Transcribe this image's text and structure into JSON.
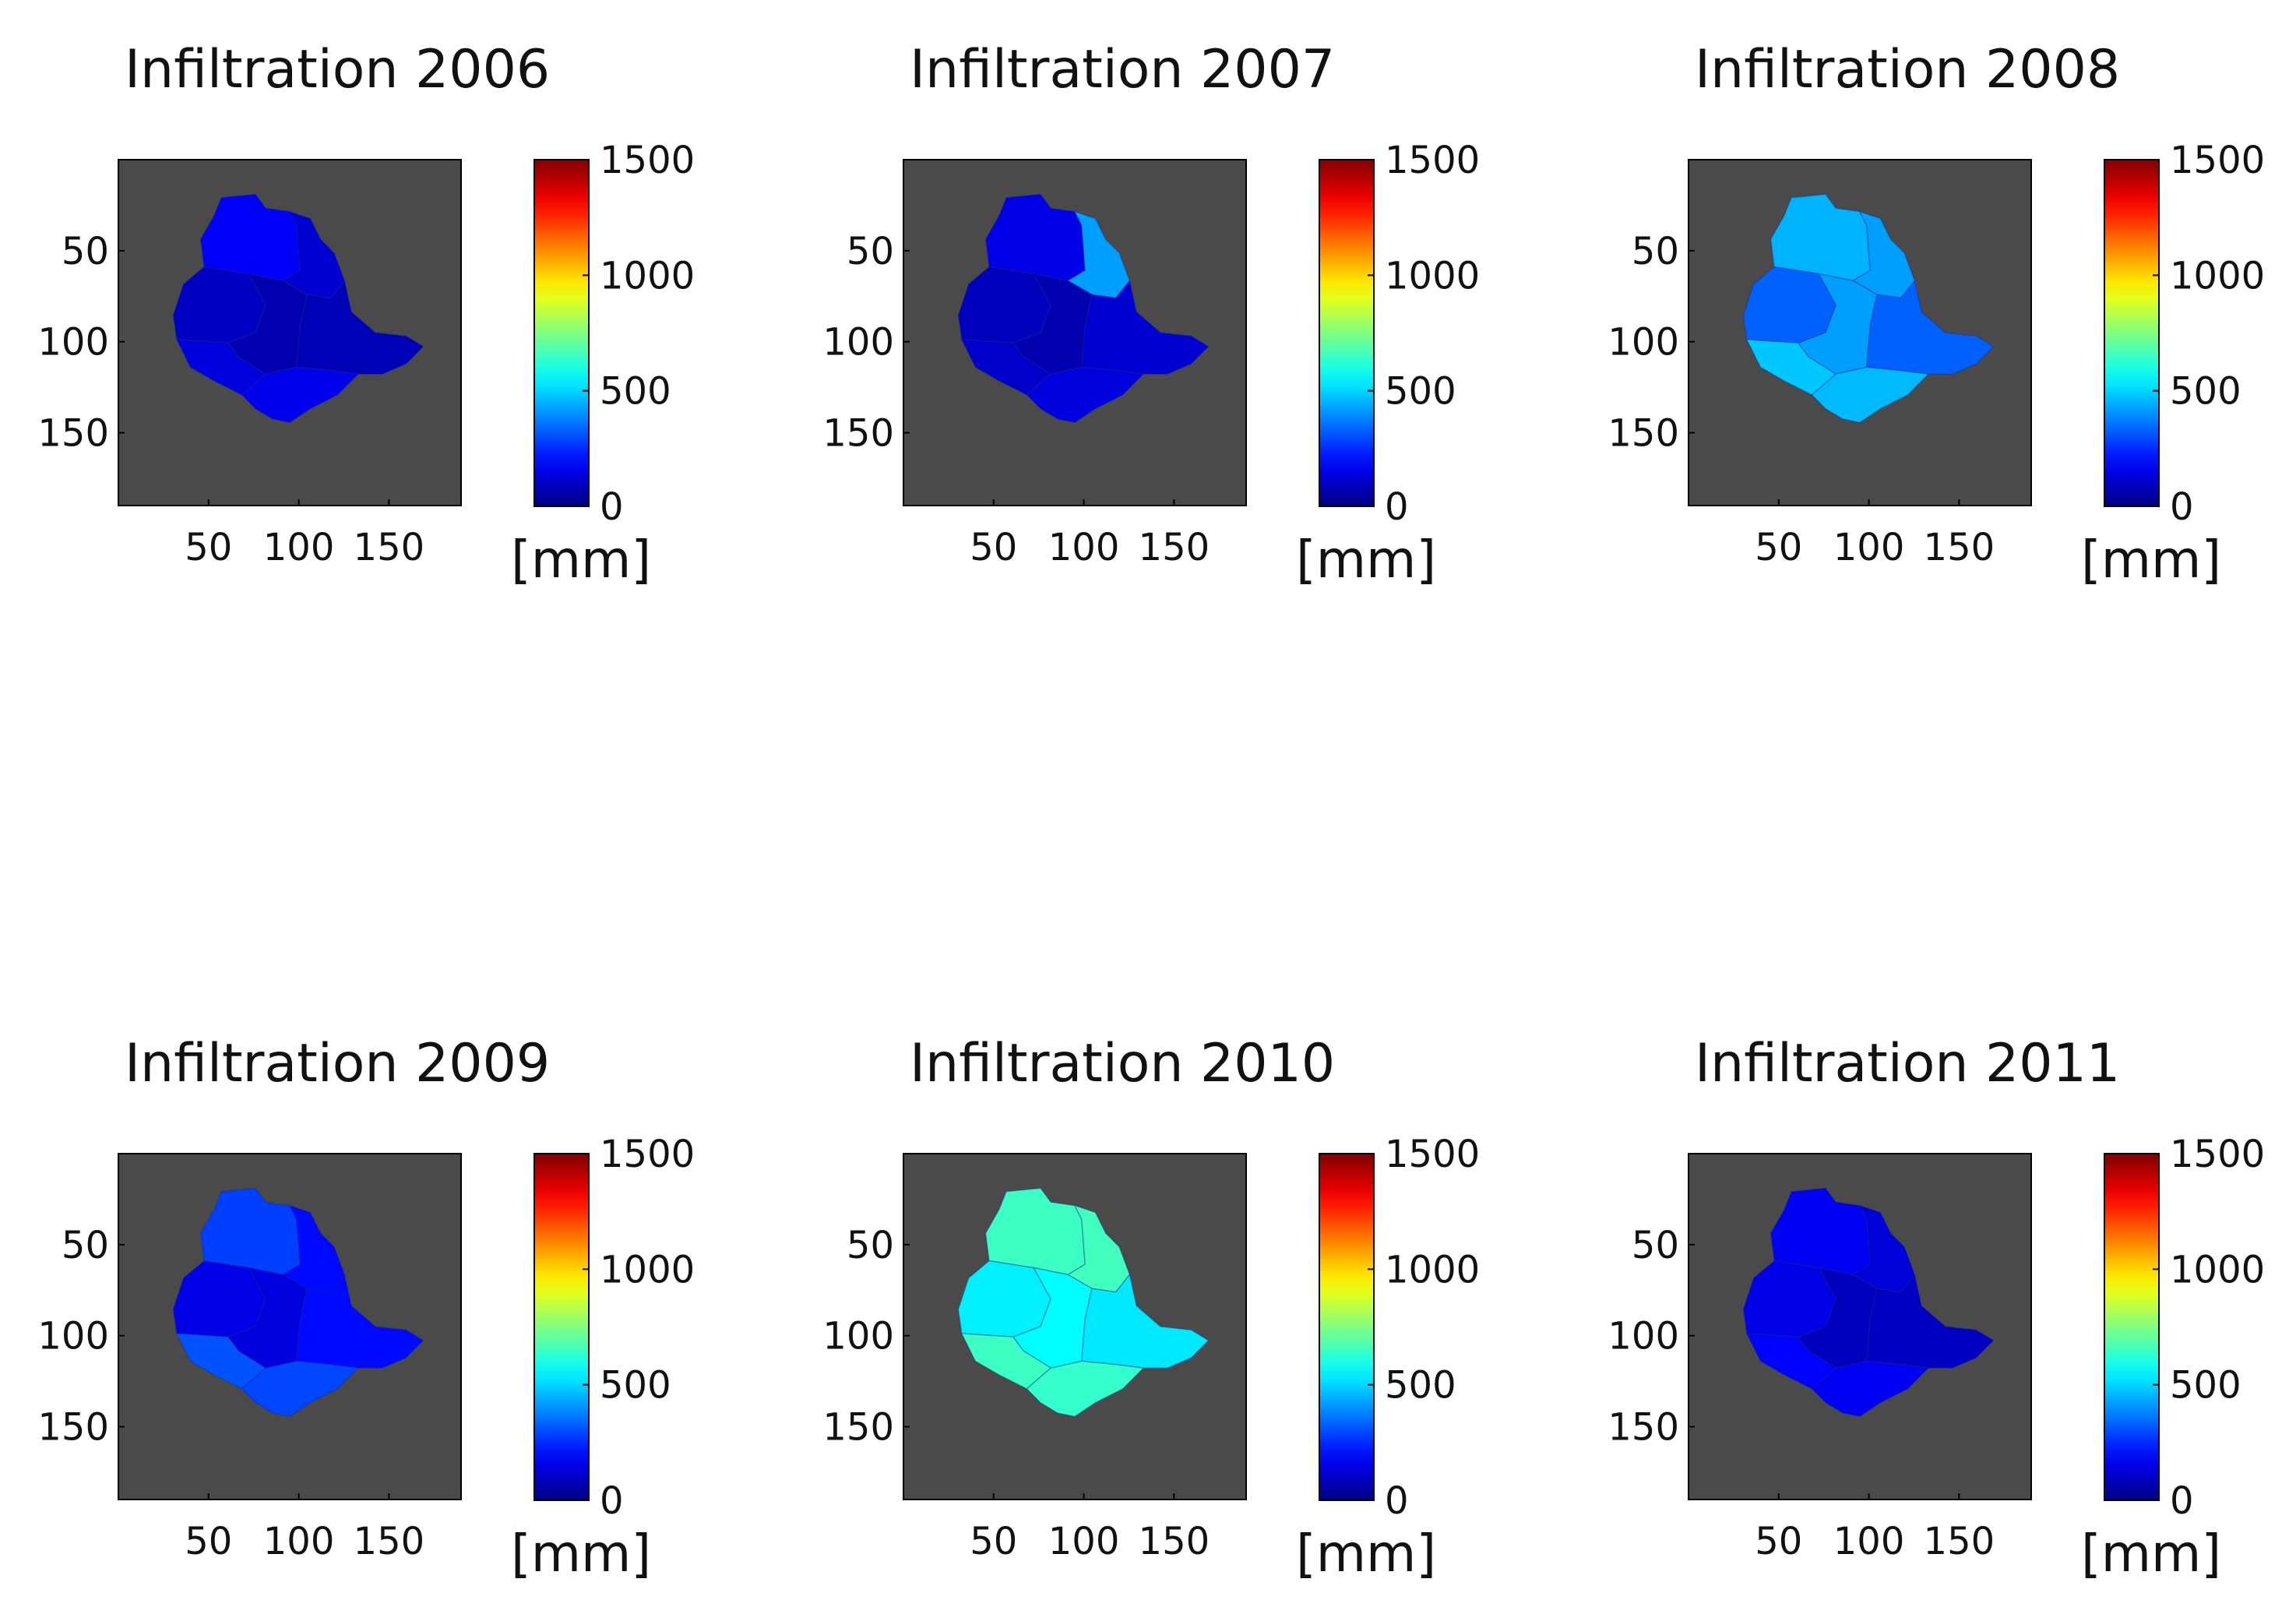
{
  "chart_data": {
    "type": "heatmap",
    "colormap": "jet",
    "colorbar": {
      "min": 0,
      "max": 1500,
      "ticks": [
        0,
        500,
        1000,
        1500
      ],
      "unit_label": "[mm]"
    },
    "axes": {
      "x_ticks": [
        50,
        100,
        150
      ],
      "y_ticks": [
        50,
        100,
        150
      ],
      "xlim": [
        0,
        190
      ],
      "ylim": [
        0,
        190
      ]
    },
    "background_color": "#4a4a4a",
    "panels": [
      {
        "title": "Infiltration 2006",
        "zone_values": {
          "north": 180,
          "northeast": 120,
          "west": 100,
          "center": 70,
          "east": 80,
          "southwest": 140,
          "south": 160
        }
      },
      {
        "title": "Infiltration 2007",
        "zone_values": {
          "north": 150,
          "northeast": 420,
          "west": 90,
          "center": 70,
          "east": 120,
          "southwest": 110,
          "south": 140
        }
      },
      {
        "title": "Infiltration 2008",
        "zone_values": {
          "north": 450,
          "northeast": 420,
          "west": 330,
          "center": 420,
          "east": 330,
          "southwest": 480,
          "south": 460
        }
      },
      {
        "title": "Infiltration 2009",
        "zone_values": {
          "north": 280,
          "northeast": 200,
          "west": 150,
          "center": 140,
          "east": 200,
          "southwest": 310,
          "south": 290
        }
      },
      {
        "title": "Infiltration 2010",
        "zone_values": {
          "north": 650,
          "northeast": 660,
          "west": 540,
          "center": 560,
          "east": 530,
          "southwest": 650,
          "south": 640
        }
      },
      {
        "title": "Infiltration 2011",
        "zone_values": {
          "north": 170,
          "northeast": 130,
          "west": 150,
          "center": 90,
          "east": 100,
          "southwest": 190,
          "south": 170
        }
      }
    ]
  }
}
